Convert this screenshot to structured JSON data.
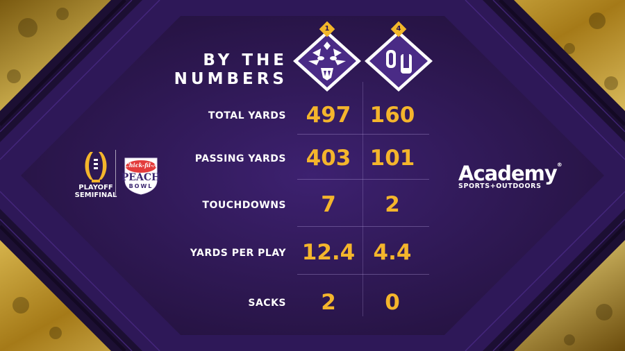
{
  "header": {
    "title_line1": "BY THE",
    "title_line2": "NUMBERS"
  },
  "teams": [
    {
      "icon": "lsu-tiger-icon",
      "seed": "1",
      "color": "#ffffff"
    },
    {
      "icon": "ou-logo-icon",
      "seed": "4",
      "color": "#ffffff"
    }
  ],
  "stats": [
    {
      "label": "TOTAL YARDS",
      "team1": "497",
      "team2": "160"
    },
    {
      "label": "PASSING YARDS",
      "team1": "403",
      "team2": "101"
    },
    {
      "label": "TOUCHDOWNS",
      "team1": "7",
      "team2": "2"
    },
    {
      "label": "YARDS PER PLAY",
      "team1": "12.4",
      "team2": "4.4"
    },
    {
      "label": "SACKS",
      "team1": "2",
      "team2": "0"
    }
  ],
  "left_logos": {
    "cfp_line1": "PLAYOFF",
    "cfp_line2": "SEMIFINAL",
    "bowl_line1": "Chick-fil-A",
    "bowl_line2": "PEACH",
    "bowl_line3": "BOWL"
  },
  "sponsor": {
    "name": "Academy",
    "registered": "®",
    "tagline": "SPORTS+OUTDOORS"
  },
  "colors": {
    "gold": "#f4b52c",
    "purple_dark": "#2a1650",
    "purple_mid": "#3b1f6e",
    "white": "#ffffff"
  }
}
